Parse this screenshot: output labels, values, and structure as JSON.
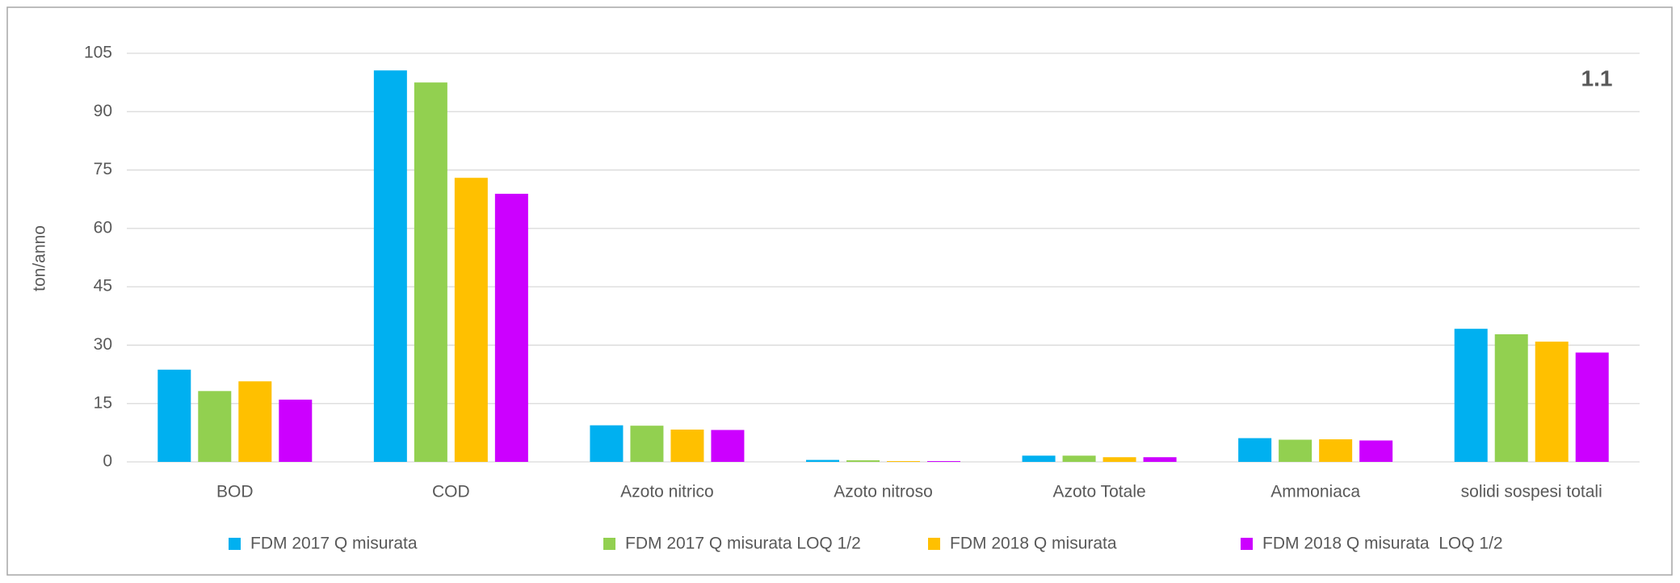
{
  "chart_data": {
    "type": "bar",
    "y_label": "ton/anno",
    "annotation": "1.1",
    "categories": [
      "BOD",
      "COD",
      "Azoto nitrico",
      "Azoto nitroso",
      "Azoto Totale",
      "Ammoniaca",
      "solidi sospesi totali"
    ],
    "series": [
      {
        "name": "FDM 2017 Q misurata",
        "color": "#00b0f0",
        "values": [
          23.7,
          100.6,
          9.4,
          0.5,
          1.6,
          6.1,
          34.2
        ]
      },
      {
        "name": "FDM 2017 Q misurata LOQ 1/2",
        "color": "#92d050",
        "values": [
          18.2,
          97.5,
          9.3,
          0.4,
          1.6,
          5.7,
          32.8
        ]
      },
      {
        "name": "FDM 2018 Q misurata",
        "color": "#ffc000",
        "values": [
          20.7,
          73,
          8.3,
          0.2,
          1.2,
          5.8,
          30.9
        ]
      },
      {
        "name": "FDM 2018 Q misurata  LOQ 1/2",
        "color": "#cc00ff",
        "values": [
          16,
          68.9,
          8.2,
          0.2,
          1.2,
          5.5,
          28.1
        ]
      }
    ],
    "ylim": [
      0,
      105
    ],
    "yticks": [
      0,
      15,
      30,
      45,
      60,
      75,
      90,
      105
    ],
    "grid": true,
    "legend": "bottom"
  }
}
